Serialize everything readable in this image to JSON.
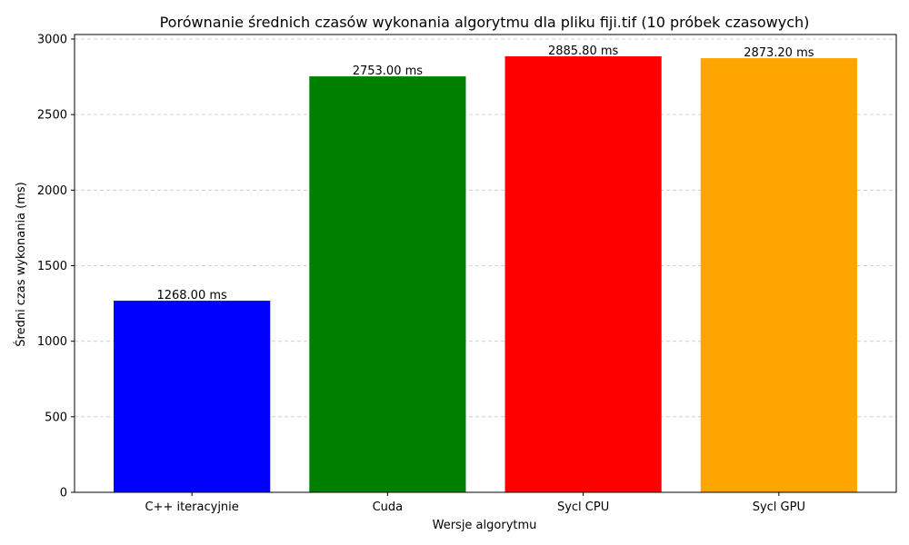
{
  "chart_data": {
    "type": "bar",
    "title": "Porównanie średnich czasów wykonania algorytmu dla pliku fiji.tif (10 próbek czasowych)",
    "xlabel": "Wersje algorytmu",
    "ylabel": "Średni czas wykonania (ms)",
    "categories": [
      "C++ iteracyjnie",
      "Cuda",
      "Sycl CPU",
      "Sycl GPU"
    ],
    "values": [
      1268.0,
      2753.0,
      2885.8,
      2873.2
    ],
    "value_labels": [
      "1268.00 ms",
      "2753.00 ms",
      "2885.80 ms",
      "2873.20 ms"
    ],
    "colors": [
      "#0000ff",
      "#008000",
      "#ff0000",
      "#ffa500"
    ],
    "ylim": [
      0,
      3030
    ],
    "yticks": [
      0,
      500,
      1000,
      1500,
      2000,
      2500,
      3000
    ],
    "grid": "horizontal dashed",
    "legend": "none"
  }
}
